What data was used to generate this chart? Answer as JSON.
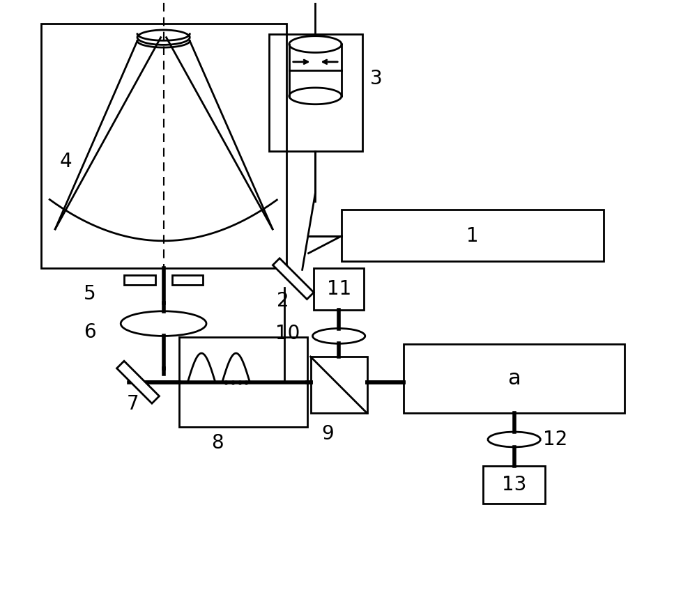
{
  "bg_color": "#ffffff",
  "lc": "#000000",
  "tlw": 4.0,
  "mlw": 2.0,
  "slw": 1.5,
  "fig_w": 10.0,
  "fig_h": 8.5
}
